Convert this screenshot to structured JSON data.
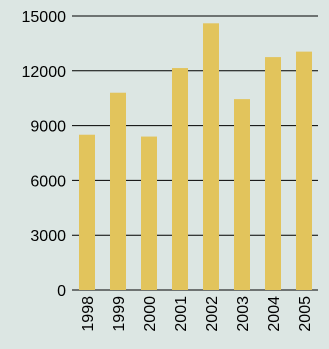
{
  "colors": {
    "background": "#dce6e3",
    "bar": "#e2c45c",
    "gridline": "#000000"
  },
  "chart_data": {
    "type": "bar",
    "title": "",
    "xlabel": "",
    "ylabel": "",
    "categories": [
      "1998",
      "1999",
      "2000",
      "2001",
      "2002",
      "2003",
      "2004",
      "2005"
    ],
    "values": [
      8500,
      10800,
      8400,
      12150,
      14600,
      10450,
      12750,
      13050
    ],
    "ylim": [
      0,
      15000
    ],
    "yticks": [
      0,
      3000,
      6000,
      9000,
      12000,
      15000
    ],
    "ytick_labels": [
      "0",
      "3000",
      "6000",
      "9000",
      "12000",
      "15000"
    ],
    "grid": true,
    "legend": "none"
  }
}
